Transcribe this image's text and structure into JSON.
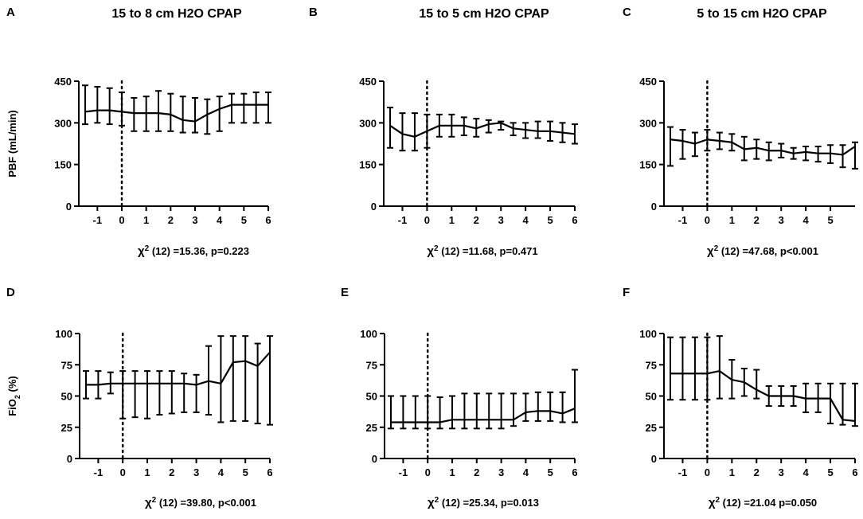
{
  "chart_data": [
    {
      "type": "line",
      "panel_label": "A",
      "title": "15 to 8 cm H2O CPAP",
      "xlabel": "",
      "ylabel": "PBF (mL/min)",
      "ylim": [
        0,
        450
      ],
      "yticks": [
        "0",
        "150",
        "300",
        "450"
      ],
      "xlim": [
        -1.5,
        6
      ],
      "xticks": [
        "-1",
        "0",
        "1",
        "2",
        "3",
        "4",
        "5",
        "6"
      ],
      "xtick_values": [
        -1,
        0,
        1,
        2,
        3,
        4,
        5,
        6
      ],
      "vline_x": 0,
      "stat": "χ² (12) =15.36, p=0.223",
      "series": [
        {
          "name": "PBF",
          "x": [
            -1.5,
            -1,
            -0.5,
            0,
            0.5,
            1,
            1.5,
            2,
            2.5,
            3,
            3.5,
            4,
            4.5,
            5,
            5.5,
            6
          ],
          "values": [
            340,
            345,
            345,
            340,
            335,
            335,
            335,
            330,
            310,
            305,
            330,
            350,
            365,
            365,
            365,
            365
          ],
          "err_low": [
            295,
            300,
            295,
            290,
            270,
            270,
            270,
            270,
            265,
            265,
            260,
            270,
            300,
            300,
            300,
            300
          ],
          "err_high": [
            435,
            430,
            425,
            410,
            390,
            395,
            415,
            405,
            395,
            390,
            385,
            395,
            405,
            405,
            410,
            410
          ]
        }
      ]
    },
    {
      "type": "line",
      "panel_label": "B",
      "title": "15 to 5 cm H2O CPAP",
      "xlabel": "",
      "ylabel": "",
      "ylim": [
        0,
        450
      ],
      "yticks": [
        "0",
        "150",
        "300",
        "450"
      ],
      "xlim": [
        -1.5,
        6
      ],
      "xticks": [
        "-1",
        "0",
        "1",
        "2",
        "3",
        "4",
        "5",
        "6"
      ],
      "xtick_values": [
        -1,
        0,
        1,
        2,
        3,
        4,
        5,
        6
      ],
      "vline_x": 0,
      "stat": "χ² (12) =11.68, p=0.471",
      "series": [
        {
          "name": "PBF",
          "x": [
            -1.5,
            -1,
            -0.5,
            0,
            0.5,
            1,
            1.5,
            2,
            2.5,
            3,
            3.5,
            4,
            4.5,
            5,
            5.5,
            6
          ],
          "values": [
            290,
            260,
            250,
            270,
            290,
            290,
            290,
            280,
            295,
            300,
            280,
            275,
            270,
            270,
            265,
            260
          ],
          "err_low": [
            210,
            200,
            200,
            210,
            250,
            250,
            255,
            250,
            265,
            275,
            255,
            245,
            245,
            235,
            230,
            225
          ],
          "err_high": [
            355,
            335,
            335,
            330,
            330,
            330,
            320,
            315,
            310,
            305,
            300,
            300,
            305,
            305,
            300,
            295
          ]
        }
      ]
    },
    {
      "type": "line",
      "panel_label": "C",
      "title": "5 to 15 cm H2O CPAP",
      "xlabel": "",
      "ylabel": "",
      "ylim": [
        0,
        450
      ],
      "yticks": [
        "0",
        "150",
        "300",
        "450"
      ],
      "xlim": [
        -1.5,
        6
      ],
      "xticks": [
        "-1",
        "0",
        "1",
        "2",
        "3",
        "4",
        "5"
      ],
      "xtick_values": [
        -1,
        0,
        1,
        2,
        3,
        4,
        5
      ],
      "vline_x": 0,
      "stat": "χ² (12) =47.68, p<0.001",
      "series": [
        {
          "name": "PBF",
          "x": [
            -1.5,
            -1,
            -0.5,
            0,
            0.5,
            1,
            1.5,
            2,
            2.5,
            3,
            3.5,
            4,
            4.5,
            5,
            5.5,
            6
          ],
          "values": [
            240,
            235,
            225,
            240,
            235,
            230,
            205,
            210,
            200,
            200,
            190,
            195,
            190,
            190,
            185,
            215
          ],
          "err_low": [
            145,
            170,
            180,
            200,
            205,
            200,
            165,
            170,
            165,
            175,
            170,
            165,
            160,
            155,
            140,
            135
          ],
          "err_high": [
            285,
            275,
            265,
            275,
            265,
            260,
            250,
            240,
            230,
            225,
            210,
            215,
            215,
            220,
            220,
            230
          ]
        }
      ]
    },
    {
      "type": "line",
      "panel_label": "D",
      "title": "",
      "xlabel": "",
      "ylabel": "FiO",
      "ylabel_sub": "2",
      "ylabel_tail": " (%)",
      "ylim": [
        0,
        100
      ],
      "yticks": [
        "0",
        "25",
        "50",
        "75",
        "100"
      ],
      "xlim": [
        -1.5,
        6
      ],
      "xticks": [
        "-1",
        "0",
        "1",
        "2",
        "3",
        "4",
        "5",
        "6"
      ],
      "xtick_values": [
        -1,
        0,
        1,
        2,
        3,
        4,
        5,
        6
      ],
      "vline_x": 0,
      "stat": "χ² (12) =39.80, p<0.001",
      "series": [
        {
          "name": "FiO2",
          "x": [
            -1.5,
            -1,
            -0.5,
            0,
            0.5,
            1,
            1.5,
            2,
            2.5,
            3,
            3.5,
            4,
            4.5,
            5,
            5.5,
            6
          ],
          "values": [
            59,
            59,
            60,
            60,
            60,
            60,
            60,
            60,
            60,
            59,
            62,
            60,
            77,
            78,
            74,
            85
          ],
          "err_low": [
            48,
            48,
            52,
            32,
            33,
            32,
            35,
            36,
            37,
            37,
            35,
            29,
            30,
            30,
            28,
            27
          ],
          "err_high": [
            70,
            70,
            69,
            70,
            70,
            70,
            70,
            70,
            68,
            67,
            90,
            98,
            98,
            98,
            92,
            98
          ]
        }
      ]
    },
    {
      "type": "line",
      "panel_label": "E",
      "title": "",
      "xlabel": "",
      "ylabel": "",
      "ylim": [
        0,
        100
      ],
      "yticks": [
        "0",
        "25",
        "50",
        "75",
        "100"
      ],
      "xlim": [
        -1.5,
        6
      ],
      "xticks": [
        "-1",
        "0",
        "1",
        "2",
        "3",
        "4",
        "5",
        "6"
      ],
      "xtick_values": [
        -1,
        0,
        1,
        2,
        3,
        4,
        5,
        6
      ],
      "vline_x": 0,
      "stat": "χ² (12) =25.34, p=0.013",
      "series": [
        {
          "name": "FiO2",
          "x": [
            -1.5,
            -1,
            -0.5,
            0,
            0.5,
            1,
            1.5,
            2,
            2.5,
            3,
            3.5,
            4,
            4.5,
            5,
            5.5,
            6
          ],
          "values": [
            29,
            29,
            29,
            29,
            29,
            31,
            31,
            31,
            31,
            31,
            31,
            37,
            38,
            38,
            36,
            40
          ],
          "err_low": [
            24,
            24,
            24,
            24,
            24,
            24,
            24,
            24,
            24,
            24,
            26,
            30,
            30,
            30,
            29,
            29
          ],
          "err_high": [
            50,
            50,
            50,
            50,
            49,
            50,
            52,
            52,
            52,
            52,
            52,
            52,
            53,
            53,
            53,
            71
          ]
        }
      ]
    },
    {
      "type": "line",
      "panel_label": "F",
      "title": "",
      "xlabel": "",
      "ylabel": "",
      "ylim": [
        0,
        100
      ],
      "yticks": [
        "0",
        "25",
        "50",
        "75",
        "100"
      ],
      "xlim": [
        -1.5,
        6
      ],
      "xticks": [
        "-1",
        "0",
        "1",
        "2",
        "3",
        "4",
        "5",
        "6"
      ],
      "xtick_values": [
        -1,
        0,
        1,
        2,
        3,
        4,
        5,
        6
      ],
      "vline_x": 0,
      "stat": "χ² (12) =21.04 p=0.050",
      "series": [
        {
          "name": "FiO2",
          "x": [
            -1.5,
            -1,
            -0.5,
            0,
            0.5,
            1,
            1.5,
            2,
            2.5,
            3,
            3.5,
            4,
            4.5,
            5,
            5.5,
            6
          ],
          "values": [
            68,
            68,
            68,
            68,
            70,
            63,
            61,
            55,
            50,
            50,
            50,
            48,
            48,
            48,
            31,
            30
          ],
          "err_low": [
            47,
            47,
            47,
            47,
            48,
            48,
            50,
            48,
            42,
            42,
            42,
            37,
            37,
            28,
            27,
            26
          ],
          "err_high": [
            97,
            97,
            97,
            97,
            98,
            79,
            72,
            71,
            58,
            58,
            58,
            60,
            60,
            60,
            60,
            60
          ]
        }
      ]
    }
  ]
}
